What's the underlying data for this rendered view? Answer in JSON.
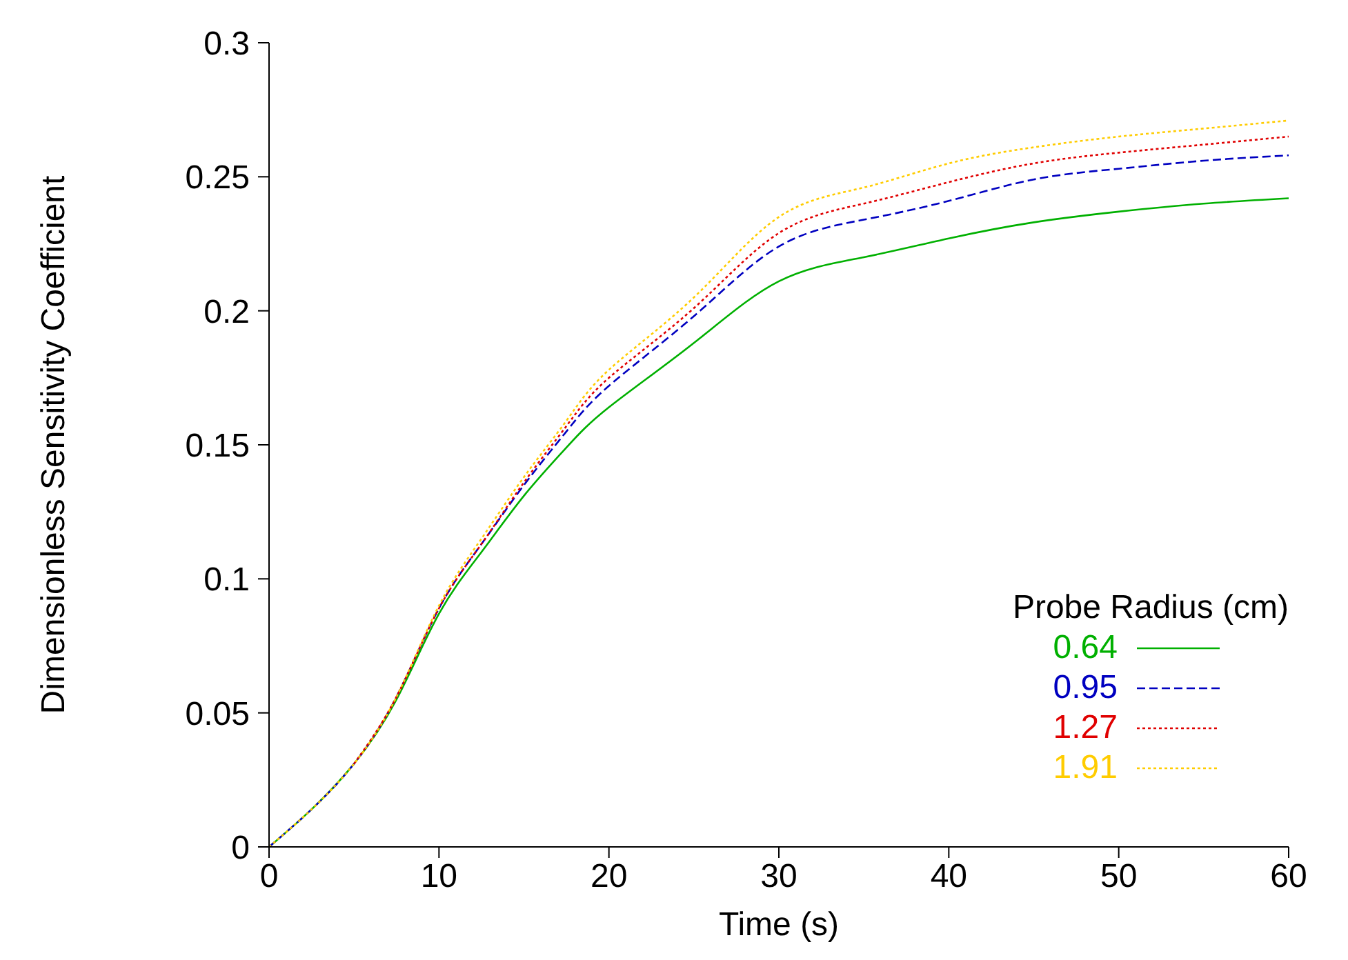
{
  "chart_data": {
    "type": "line",
    "xlabel": "Time (s)",
    "ylabel": "Dimensionless Sensitivity Coefficient",
    "legend_title": "Probe Radius (cm)",
    "x": [
      0,
      2.5,
      5,
      7.5,
      10,
      12.5,
      15,
      17.5,
      20,
      25,
      30,
      35,
      40,
      45,
      50,
      55,
      60
    ],
    "series": [
      {
        "name": "0.64",
        "color": "#00b000",
        "line_style": "solid",
        "values": [
          0,
          0.014,
          0.031,
          0.055,
          0.087,
          0.11,
          0.131,
          0.149,
          0.164,
          0.188,
          0.211,
          0.22,
          0.227,
          0.233,
          0.237,
          0.24,
          0.242
        ]
      },
      {
        "name": "0.95",
        "color": "#0000c0",
        "line_style": "dashed",
        "values": [
          0,
          0.014,
          0.031,
          0.056,
          0.089,
          0.113,
          0.135,
          0.155,
          0.172,
          0.198,
          0.224,
          0.234,
          0.241,
          0.249,
          0.253,
          0.256,
          0.258
        ]
      },
      {
        "name": "1.27",
        "color": "#e00000",
        "line_style": "dotted",
        "values": [
          null,
          null,
          0.031,
          0.056,
          0.089,
          0.113,
          0.136,
          0.157,
          0.175,
          0.201,
          0.229,
          0.24,
          0.248,
          0.255,
          0.259,
          0.262,
          0.265
        ]
      },
      {
        "name": "1.91",
        "color": "#ffcc00",
        "line_style": "dotted",
        "values": [
          0,
          0.014,
          0.031,
          0.056,
          0.09,
          0.115,
          0.138,
          0.159,
          0.178,
          0.205,
          0.235,
          0.246,
          0.255,
          0.261,
          0.265,
          0.268,
          0.271
        ]
      }
    ],
    "xlim": [
      0,
      60
    ],
    "xticks": [
      0,
      10,
      20,
      30,
      40,
      50,
      60
    ],
    "ylim": [
      0,
      0.3
    ],
    "yticks": [
      0,
      0.05,
      0.1,
      0.15,
      0.2,
      0.25,
      0.3
    ],
    "grid": false,
    "legend": "bottom right",
    "marker": "none"
  }
}
